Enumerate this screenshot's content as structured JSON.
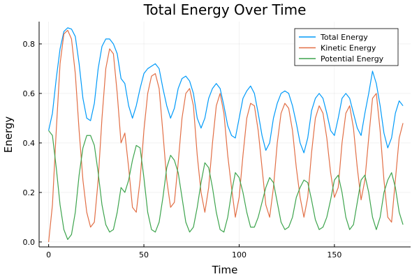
{
  "chart_data": {
    "type": "line",
    "title": "Total Energy Over Time",
    "xlabel": "Time",
    "ylabel": "Energy",
    "xlim": [
      -5,
      190
    ],
    "ylim": [
      -0.02,
      0.89
    ],
    "xticks": [
      0,
      50,
      100,
      150
    ],
    "xtick_labels": [
      "0",
      "50",
      "100",
      "150"
    ],
    "yticks": [
      0.0,
      0.2,
      0.4,
      0.6,
      0.8
    ],
    "ytick_labels": [
      "0.0",
      "0.2",
      "0.4",
      "0.6",
      "0.8"
    ],
    "grid": true,
    "legend": "top-right",
    "series": [
      {
        "name": "Total Energy",
        "color": "#009af9",
        "x": [
          0,
          2,
          4,
          6,
          8,
          10,
          12,
          14,
          16,
          18,
          20,
          22,
          24,
          26,
          28,
          30,
          32,
          34,
          36,
          38,
          40,
          42,
          44,
          46,
          48,
          50,
          52,
          54,
          56,
          58,
          60,
          62,
          64,
          66,
          68,
          70,
          72,
          74,
          76,
          78,
          80,
          82,
          84,
          86,
          88,
          90,
          92,
          94,
          96,
          98,
          100,
          102,
          104,
          106,
          108,
          110,
          112,
          114,
          116,
          118,
          120,
          122,
          124,
          126,
          128,
          130,
          132,
          134,
          136,
          138,
          140,
          142,
          144,
          146,
          148,
          150,
          152,
          154,
          156,
          158,
          160,
          162,
          164,
          166,
          168,
          170,
          172,
          174,
          176,
          178,
          180,
          182,
          184,
          186
        ],
        "y": [
          0.45,
          0.52,
          0.66,
          0.78,
          0.85,
          0.865,
          0.86,
          0.83,
          0.72,
          0.58,
          0.5,
          0.49,
          0.56,
          0.7,
          0.79,
          0.82,
          0.82,
          0.8,
          0.76,
          0.66,
          0.64,
          0.55,
          0.5,
          0.55,
          0.62,
          0.68,
          0.7,
          0.71,
          0.72,
          0.7,
          0.62,
          0.55,
          0.5,
          0.54,
          0.62,
          0.66,
          0.67,
          0.65,
          0.6,
          0.5,
          0.46,
          0.5,
          0.58,
          0.62,
          0.64,
          0.62,
          0.55,
          0.47,
          0.43,
          0.42,
          0.5,
          0.58,
          0.61,
          0.63,
          0.6,
          0.52,
          0.43,
          0.37,
          0.4,
          0.5,
          0.56,
          0.6,
          0.61,
          0.6,
          0.55,
          0.48,
          0.4,
          0.36,
          0.42,
          0.53,
          0.58,
          0.6,
          0.58,
          0.52,
          0.45,
          0.43,
          0.5,
          0.58,
          0.6,
          0.58,
          0.52,
          0.46,
          0.43,
          0.52,
          0.6,
          0.69,
          0.64,
          0.55,
          0.44,
          0.38,
          0.42,
          0.52,
          0.57,
          0.55
        ]
      },
      {
        "name": "Kinetic Energy",
        "color": "#e26f46",
        "x": [
          0,
          2,
          4,
          6,
          8,
          10,
          12,
          14,
          16,
          18,
          20,
          22,
          24,
          26,
          28,
          30,
          32,
          34,
          36,
          38,
          40,
          42,
          44,
          46,
          48,
          50,
          52,
          54,
          56,
          58,
          60,
          62,
          64,
          66,
          68,
          70,
          72,
          74,
          76,
          78,
          80,
          82,
          84,
          86,
          88,
          90,
          92,
          94,
          96,
          98,
          100,
          102,
          104,
          106,
          108,
          110,
          112,
          114,
          116,
          118,
          120,
          122,
          124,
          126,
          128,
          130,
          132,
          134,
          136,
          138,
          140,
          142,
          144,
          146,
          148,
          150,
          152,
          154,
          156,
          158,
          160,
          162,
          164,
          166,
          168,
          170,
          172,
          174,
          176,
          178,
          180,
          182,
          184,
          186
        ],
        "y": [
          0.0,
          0.15,
          0.45,
          0.72,
          0.84,
          0.855,
          0.82,
          0.68,
          0.45,
          0.25,
          0.12,
          0.06,
          0.08,
          0.25,
          0.5,
          0.7,
          0.78,
          0.76,
          0.6,
          0.4,
          0.44,
          0.3,
          0.14,
          0.12,
          0.25,
          0.45,
          0.6,
          0.67,
          0.68,
          0.62,
          0.44,
          0.25,
          0.14,
          0.16,
          0.32,
          0.5,
          0.6,
          0.62,
          0.55,
          0.35,
          0.2,
          0.12,
          0.22,
          0.4,
          0.55,
          0.6,
          0.52,
          0.35,
          0.22,
          0.1,
          0.18,
          0.35,
          0.5,
          0.56,
          0.55,
          0.45,
          0.3,
          0.15,
          0.1,
          0.22,
          0.4,
          0.52,
          0.56,
          0.54,
          0.45,
          0.3,
          0.18,
          0.1,
          0.18,
          0.36,
          0.5,
          0.55,
          0.52,
          0.42,
          0.28,
          0.18,
          0.22,
          0.4,
          0.52,
          0.55,
          0.46,
          0.3,
          0.17,
          0.25,
          0.42,
          0.58,
          0.6,
          0.45,
          0.25,
          0.1,
          0.08,
          0.25,
          0.42,
          0.48
        ]
      },
      {
        "name": "Potential Energy",
        "color": "#3da44d",
        "x": [
          0,
          2,
          4,
          6,
          8,
          10,
          12,
          14,
          16,
          18,
          20,
          22,
          24,
          26,
          28,
          30,
          32,
          34,
          36,
          38,
          40,
          42,
          44,
          46,
          48,
          50,
          52,
          54,
          56,
          58,
          60,
          62,
          64,
          66,
          68,
          70,
          72,
          74,
          76,
          78,
          80,
          82,
          84,
          86,
          88,
          90,
          92,
          94,
          96,
          98,
          100,
          102,
          104,
          106,
          108,
          110,
          112,
          114,
          116,
          118,
          120,
          122,
          124,
          126,
          128,
          130,
          132,
          134,
          136,
          138,
          140,
          142,
          144,
          146,
          148,
          150,
          152,
          154,
          156,
          158,
          160,
          162,
          164,
          166,
          168,
          170,
          172,
          174,
          176,
          178,
          180,
          182,
          184,
          186
        ],
        "y": [
          0.45,
          0.43,
          0.3,
          0.15,
          0.05,
          0.01,
          0.03,
          0.12,
          0.27,
          0.38,
          0.43,
          0.43,
          0.39,
          0.28,
          0.15,
          0.07,
          0.04,
          0.05,
          0.12,
          0.22,
          0.2,
          0.25,
          0.33,
          0.39,
          0.38,
          0.26,
          0.12,
          0.05,
          0.04,
          0.08,
          0.18,
          0.3,
          0.35,
          0.33,
          0.28,
          0.18,
          0.08,
          0.04,
          0.06,
          0.14,
          0.24,
          0.32,
          0.3,
          0.22,
          0.12,
          0.05,
          0.04,
          0.1,
          0.2,
          0.28,
          0.26,
          0.2,
          0.12,
          0.06,
          0.06,
          0.1,
          0.16,
          0.22,
          0.26,
          0.24,
          0.16,
          0.08,
          0.05,
          0.06,
          0.1,
          0.18,
          0.22,
          0.25,
          0.24,
          0.17,
          0.09,
          0.05,
          0.06,
          0.1,
          0.17,
          0.25,
          0.27,
          0.2,
          0.1,
          0.05,
          0.07,
          0.16,
          0.25,
          0.27,
          0.2,
          0.1,
          0.05,
          0.1,
          0.2,
          0.25,
          0.28,
          0.22,
          0.12,
          0.07
        ]
      }
    ]
  }
}
